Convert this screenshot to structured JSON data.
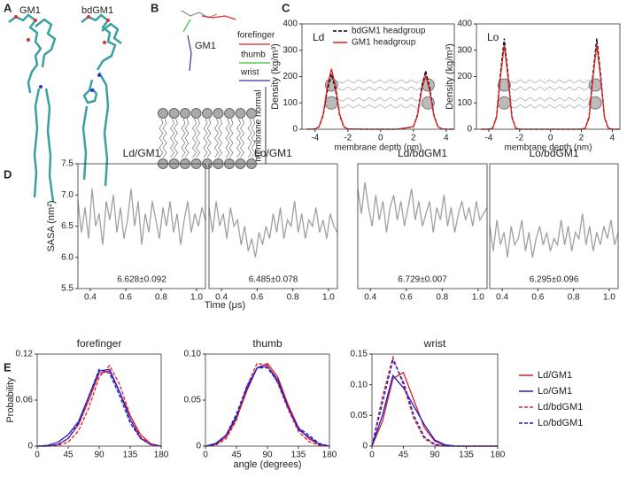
{
  "figure": {
    "panel_labels": [
      "A",
      "B",
      "C",
      "D",
      "E"
    ],
    "a_labels": [
      "GM1",
      "bdGM1"
    ],
    "b_labels": {
      "glycan": "GM1",
      "forefinger": "forefinger",
      "thumb": "thumb",
      "wrist": "wrist",
      "normal": "membrane normal"
    },
    "d_xlabel": "Time (μs)",
    "e_xlabel": "angle (degrees)"
  },
  "chart_data": [
    {
      "type": "line",
      "annotation": "Ld",
      "xlabel": "membrane depth (nm)",
      "ylabel": "Density (kg/m³)",
      "legend": "upper center",
      "xlim": [
        -4.8,
        4.5
      ],
      "ylim": [
        0,
        400
      ],
      "xticks": [
        -4,
        -2,
        0,
        2,
        4
      ],
      "yticks": [
        0,
        100,
        200,
        300,
        400
      ],
      "x": [
        -4.5,
        -4,
        -3.75,
        -3.5,
        -3.25,
        -3,
        -2.75,
        -2.5,
        -2.25,
        -2,
        -1,
        0,
        1,
        2,
        2.25,
        2.5,
        2.75,
        3,
        3.25,
        3.5,
        3.75,
        4,
        4.5
      ],
      "series": [
        {
          "name": "bdGM1 headgroup",
          "color": "#000000",
          "dash": true,
          "values": [
            0,
            1,
            9,
            53,
            148,
            210,
            148,
            53,
            9,
            1,
            0,
            0,
            0,
            10,
            55,
            157,
            222,
            157,
            55,
            10,
            1,
            0,
            0
          ]
        },
        {
          "name": "GM1 headgroup",
          "color": "#e02020",
          "dash": false,
          "values": [
            0,
            1,
            10,
            58,
            163,
            230,
            163,
            58,
            10,
            1,
            0,
            0,
            0,
            9,
            51,
            145,
            205,
            145,
            51,
            9,
            1,
            0,
            0
          ]
        }
      ]
    },
    {
      "type": "line",
      "annotation": "Lo",
      "xlabel": "membrane depth (nm)",
      "ylabel": "Density (kg/m³)",
      "xlim": [
        -4.8,
        4.5
      ],
      "ylim": [
        0,
        400
      ],
      "xticks": [
        -4,
        -2,
        0,
        2,
        4
      ],
      "yticks": [
        0,
        100,
        200,
        300,
        400
      ],
      "x": [
        -4.5,
        -4,
        -3.75,
        -3.5,
        -3.25,
        -3,
        -2.75,
        -2.5,
        -2.25,
        -2,
        -1,
        0,
        1,
        2,
        2.25,
        2.5,
        2.75,
        3,
        3.25,
        3.5,
        3.75,
        4,
        4.5
      ],
      "series": [
        {
          "color": "#000000",
          "dash": true,
          "values": [
            0,
            0,
            4,
            47,
            209,
            345,
            209,
            47,
            4,
            0,
            0,
            0,
            0,
            0,
            4,
            47,
            209,
            345,
            209,
            47,
            4,
            0,
            0
          ]
        },
        {
          "color": "#e02020",
          "dash": false,
          "values": [
            0,
            0,
            4,
            43,
            194,
            320,
            194,
            43,
            4,
            0,
            0,
            0,
            0,
            0,
            4,
            43,
            194,
            320,
            194,
            43,
            4,
            0,
            0
          ]
        }
      ]
    },
    {
      "type": "line",
      "title": "Ld/GM1",
      "annotation": "6.628±0.092",
      "ylabel": "SASA (nm²)",
      "xlim": [
        0.33,
        1.05
      ],
      "ylim": [
        5.5,
        7.5
      ],
      "xticks": [
        0.4,
        0.6,
        0.8,
        {
          "value": 1,
          "label": "1.0"
        }
      ],
      "yticks": [
        5.5,
        {
          "value": 6,
          "label": "6.0"
        },
        6.5,
        {
          "value": 7,
          "label": "7.0"
        },
        7.5
      ],
      "x": [
        0.33,
        0.35,
        0.37,
        0.39,
        0.41,
        0.43,
        0.45,
        0.47,
        0.49,
        0.51,
        0.53,
        0.55,
        0.57,
        0.59,
        0.61,
        0.63,
        0.65,
        0.67,
        0.69,
        0.71,
        0.73,
        0.75,
        0.77,
        0.79,
        0.81,
        0.83,
        0.85,
        0.87,
        0.89,
        0.91,
        0.93,
        0.95,
        0.97,
        0.99,
        1.01,
        1.03,
        1.05
      ],
      "series": [
        {
          "color": "#a0a0a0",
          "dash": false,
          "values": [
            6.9,
            6.4,
            6.8,
            6.3,
            7.1,
            6.5,
            6.7,
            6.2,
            6.9,
            6.6,
            7.0,
            6.4,
            6.8,
            6.3,
            6.6,
            7.1,
            6.5,
            6.9,
            6.2,
            6.7,
            6.4,
            6.9,
            6.6,
            6.3,
            6.8,
            6.5,
            6.9,
            6.4,
            6.7,
            6.2,
            6.6,
            6.9,
            6.4,
            6.7,
            6.5,
            6.8,
            6.6
          ]
        }
      ]
    },
    {
      "type": "line",
      "title": "Lo/GM1",
      "annotation": "6.485±0.078",
      "xlim": [
        0.33,
        1.05
      ],
      "ylim": [
        5.5,
        7.5
      ],
      "xticks": [
        0.4,
        0.6,
        0.8,
        {
          "value": 1,
          "label": "1.0"
        }
      ],
      "x": [
        0.33,
        0.35,
        0.37,
        0.39,
        0.41,
        0.43,
        0.45,
        0.47,
        0.49,
        0.51,
        0.53,
        0.55,
        0.57,
        0.59,
        0.61,
        0.63,
        0.65,
        0.67,
        0.69,
        0.71,
        0.73,
        0.75,
        0.77,
        0.79,
        0.81,
        0.83,
        0.85,
        0.87,
        0.89,
        0.91,
        0.93,
        0.95,
        0.97,
        0.99,
        1.01,
        1.03,
        1.05
      ],
      "series": [
        {
          "color": "#a0a0a0",
          "dash": false,
          "values": [
            6.8,
            6.4,
            6.9,
            6.5,
            6.7,
            6.3,
            6.8,
            6.5,
            6.6,
            6.2,
            6.5,
            6.1,
            6.3,
            6.0,
            6.4,
            6.2,
            6.5,
            6.3,
            6.7,
            6.4,
            6.8,
            6.3,
            6.6,
            6.5,
            6.9,
            6.4,
            6.7,
            6.3,
            6.6,
            6.5,
            6.8,
            6.4,
            6.6,
            6.3,
            6.7,
            6.5,
            6.4
          ]
        }
      ]
    },
    {
      "type": "line",
      "title": "Ld/bdGM1",
      "annotation": "6.729±0.007",
      "xlim": [
        0.33,
        1.05
      ],
      "ylim": [
        5.5,
        7.5
      ],
      "xticks": [
        0.4,
        0.6,
        0.8,
        {
          "value": 1,
          "label": "1.0"
        }
      ],
      "x": [
        0.33,
        0.35,
        0.37,
        0.39,
        0.41,
        0.43,
        0.45,
        0.47,
        0.49,
        0.51,
        0.53,
        0.55,
        0.57,
        0.59,
        0.61,
        0.63,
        0.65,
        0.67,
        0.69,
        0.71,
        0.73,
        0.75,
        0.77,
        0.79,
        0.81,
        0.83,
        0.85,
        0.87,
        0.89,
        0.91,
        0.93,
        0.95,
        0.97,
        0.99,
        1.01,
        1.03,
        1.05
      ],
      "series": [
        {
          "color": "#a0a0a0",
          "dash": false,
          "values": [
            7.1,
            6.7,
            7.2,
            6.8,
            6.5,
            7.0,
            6.6,
            6.9,
            6.4,
            6.8,
            7.0,
            6.6,
            6.9,
            6.5,
            6.8,
            7.1,
            6.6,
            6.9,
            6.5,
            6.7,
            6.9,
            6.4,
            6.8,
            6.6,
            7.0,
            6.5,
            6.8,
            6.4,
            6.7,
            6.9,
            6.6,
            6.8,
            6.5,
            6.9,
            6.6,
            6.7,
            6.8
          ]
        }
      ]
    },
    {
      "type": "line",
      "title": "Lo/bdGM1",
      "annotation": "6.295±0.096",
      "xlim": [
        0.33,
        1.05
      ],
      "ylim": [
        5.5,
        7.5
      ],
      "xticks": [
        0.4,
        0.6,
        0.8,
        {
          "value": 1,
          "label": "1.0"
        }
      ],
      "x": [
        0.33,
        0.35,
        0.37,
        0.39,
        0.41,
        0.43,
        0.45,
        0.47,
        0.49,
        0.51,
        0.53,
        0.55,
        0.57,
        0.59,
        0.61,
        0.63,
        0.65,
        0.67,
        0.69,
        0.71,
        0.73,
        0.75,
        0.77,
        0.79,
        0.81,
        0.83,
        0.85,
        0.87,
        0.89,
        0.91,
        0.93,
        0.95,
        0.97,
        0.99,
        1.01,
        1.03,
        1.05
      ],
      "series": [
        {
          "color": "#a0a0a0",
          "dash": false,
          "values": [
            6.5,
            6.1,
            6.6,
            6.2,
            6.4,
            6.0,
            6.5,
            6.2,
            6.3,
            6.6,
            6.1,
            6.4,
            6.0,
            6.3,
            6.5,
            6.2,
            6.4,
            6.1,
            6.3,
            6.2,
            6.6,
            6.2,
            6.5,
            6.1,
            6.4,
            6.3,
            6.7,
            6.2,
            6.5,
            6.1,
            6.4,
            6.2,
            6.5,
            6.3,
            6.6,
            6.2,
            6.4
          ]
        }
      ]
    },
    {
      "type": "line",
      "title": "forefinger",
      "ylabel": "Probability",
      "xlim": [
        0,
        180
      ],
      "ylim": [
        0,
        0.12
      ],
      "xticks": [
        0,
        45,
        90,
        135,
        180
      ],
      "yticks": [
        0,
        0.06,
        0.12
      ],
      "x": [
        0,
        15,
        30,
        45,
        60,
        75,
        90,
        105,
        120,
        135,
        150,
        165,
        180
      ],
      "series": [
        {
          "color": "#e02020",
          "dash": false,
          "values": [
            0,
            0,
            0.002,
            0.01,
            0.028,
            0.06,
            0.095,
            0.098,
            0.07,
            0.04,
            0.015,
            0.003,
            0
          ]
        },
        {
          "color": "#1a1ad0",
          "dash": false,
          "values": [
            0,
            0.001,
            0.005,
            0.015,
            0.032,
            0.065,
            0.098,
            0.1,
            0.07,
            0.035,
            0.01,
            0.002,
            0
          ]
        },
        {
          "color": "#e02020",
          "dash": true,
          "values": [
            0,
            0,
            0.001,
            0.005,
            0.02,
            0.05,
            0.09,
            0.105,
            0.08,
            0.04,
            0.012,
            0.002,
            0
          ]
        },
        {
          "color": "#1a1ad0",
          "dash": true,
          "values": [
            0,
            0,
            0.002,
            0.01,
            0.03,
            0.065,
            0.1,
            0.095,
            0.065,
            0.03,
            0.01,
            0.002,
            0
          ]
        }
      ]
    },
    {
      "type": "line",
      "title": "thumb",
      "xlim": [
        0,
        180
      ],
      "ylim": [
        0,
        0.1
      ],
      "xticks": [
        0,
        45,
        90,
        135,
        180
      ],
      "yticks": [
        0,
        0.05,
        {
          "value": 0.1,
          "label": "0.10"
        }
      ],
      "x": [
        0,
        15,
        30,
        45,
        60,
        75,
        90,
        105,
        120,
        135,
        150,
        165,
        180
      ],
      "series": [
        {
          "color": "#e02020",
          "dash": false,
          "values": [
            0,
            0.002,
            0.01,
            0.03,
            0.06,
            0.085,
            0.09,
            0.075,
            0.045,
            0.02,
            0.008,
            0.002,
            0
          ]
        },
        {
          "color": "#1a1ad0",
          "dash": false,
          "values": [
            0,
            0.003,
            0.012,
            0.032,
            0.062,
            0.085,
            0.087,
            0.072,
            0.042,
            0.018,
            0.01,
            0.002,
            0
          ]
        },
        {
          "color": "#e02020",
          "dash": true,
          "values": [
            0,
            0.001,
            0.008,
            0.028,
            0.065,
            0.09,
            0.088,
            0.068,
            0.04,
            0.016,
            0.005,
            0.001,
            0
          ]
        },
        {
          "color": "#1a1ad0",
          "dash": true,
          "values": [
            0,
            0.002,
            0.012,
            0.035,
            0.065,
            0.085,
            0.085,
            0.07,
            0.042,
            0.02,
            0.012,
            0.003,
            0
          ]
        }
      ]
    },
    {
      "type": "line",
      "title": "wrist",
      "legend": "outside right",
      "xlim": [
        0,
        180
      ],
      "ylim": [
        0,
        0.15
      ],
      "xticks": [
        0,
        45,
        90,
        135,
        180
      ],
      "yticks": [
        0,
        0.05,
        {
          "value": 0.1,
          "label": "0.10"
        },
        0.15
      ],
      "x": [
        0,
        15,
        30,
        45,
        60,
        75,
        90,
        105,
        120,
        135,
        150,
        165,
        180
      ],
      "series": [
        {
          "name": "Ld/GM1",
          "color": "#e02020",
          "dash": false,
          "values": [
            0,
            0.04,
            0.11,
            0.12,
            0.075,
            0.03,
            0.008,
            0.001,
            0,
            0,
            0,
            0,
            0
          ]
        },
        {
          "name": "Lo/GM1",
          "color": "#1a1ad0",
          "dash": false,
          "values": [
            0,
            0.05,
            0.115,
            0.095,
            0.065,
            0.035,
            0.01,
            0.002,
            0,
            0,
            0,
            0,
            0
          ]
        },
        {
          "name": "Ld/bdGM1",
          "color": "#e02020",
          "dash": true,
          "values": [
            0,
            0.08,
            0.145,
            0.1,
            0.045,
            0.012,
            0.002,
            0,
            0,
            0,
            0,
            0,
            0
          ]
        },
        {
          "name": "Lo/bdGM1",
          "color": "#1a1ad0",
          "dash": true,
          "values": [
            0,
            0.07,
            0.14,
            0.105,
            0.05,
            0.015,
            0.003,
            0,
            0,
            0,
            0,
            0,
            0
          ]
        }
      ]
    }
  ]
}
